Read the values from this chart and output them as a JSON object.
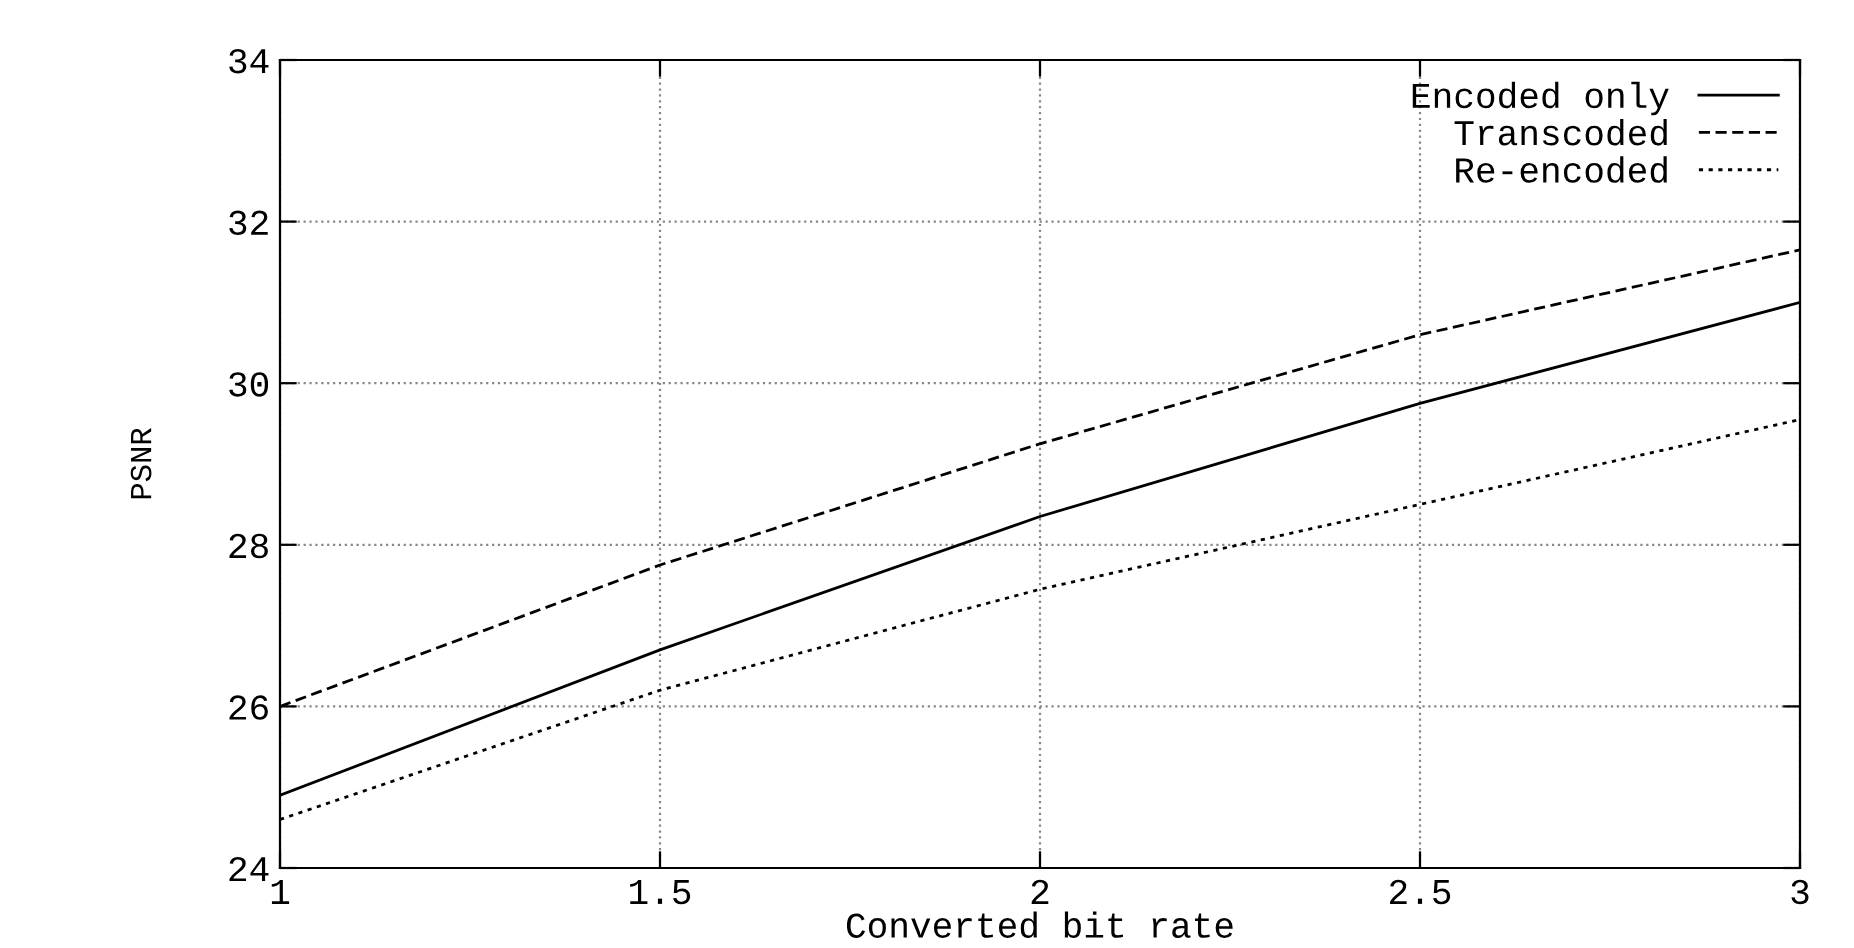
{
  "chart_data": {
    "type": "line",
    "xlabel": "Converted bit rate",
    "ylabel": "PSNR",
    "x": [
      1,
      1.5,
      2,
      2.5,
      3
    ],
    "series": [
      {
        "name": "Encoded only",
        "color": "#000000",
        "line_style": "solid",
        "values": [
          24.9,
          26.7,
          28.35,
          29.75,
          31.0
        ]
      },
      {
        "name": "Transcoded",
        "color": "#000000",
        "line_style": "dashed",
        "values": [
          26.0,
          27.75,
          29.25,
          30.6,
          31.65
        ]
      },
      {
        "name": "Re-encoded",
        "color": "#000000",
        "line_style": "dotted",
        "values": [
          24.6,
          26.2,
          27.45,
          28.5,
          29.55
        ]
      }
    ],
    "xlim": [
      1,
      3
    ],
    "xticks": [
      1,
      1.5,
      2,
      2.5,
      3
    ],
    "ylim": [
      24,
      34
    ],
    "yticks": [
      24,
      26,
      28,
      30,
      32,
      34
    ],
    "grid": true,
    "legend": "top right",
    "marker": "none"
  }
}
